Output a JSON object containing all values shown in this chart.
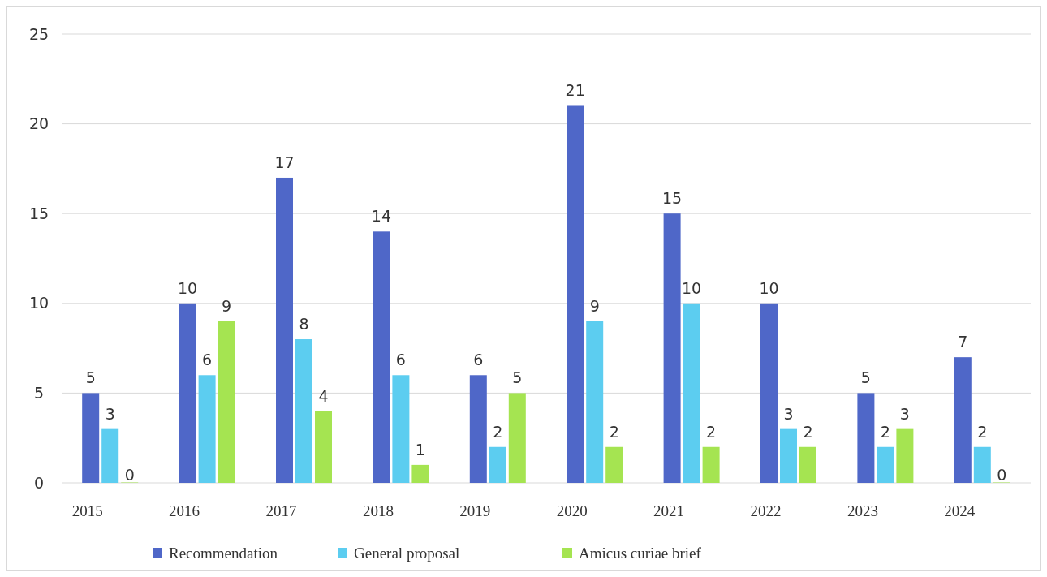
{
  "chart_data": {
    "type": "bar",
    "categories": [
      "2015",
      "2016",
      "2017",
      "2018",
      "2019",
      "2020",
      "2021",
      "2022",
      "2023",
      "2024"
    ],
    "series": [
      {
        "name": "Recommendation",
        "color": "#4f67c8",
        "values": [
          5,
          10,
          17,
          14,
          6,
          21,
          15,
          10,
          5,
          7
        ]
      },
      {
        "name": "General proposal",
        "color": "#5ccdf0",
        "values": [
          3,
          6,
          8,
          6,
          2,
          9,
          10,
          3,
          2,
          2
        ]
      },
      {
        "name": "Amicus curiae brief",
        "color": "#a5e451",
        "values": [
          0,
          9,
          4,
          1,
          5,
          2,
          2,
          2,
          3,
          0
        ]
      }
    ],
    "ylim": [
      0,
      25
    ],
    "yticks": [
      0,
      5,
      10,
      15,
      20,
      25
    ],
    "grid": "y",
    "legend": "bottom",
    "data_labels": true
  }
}
